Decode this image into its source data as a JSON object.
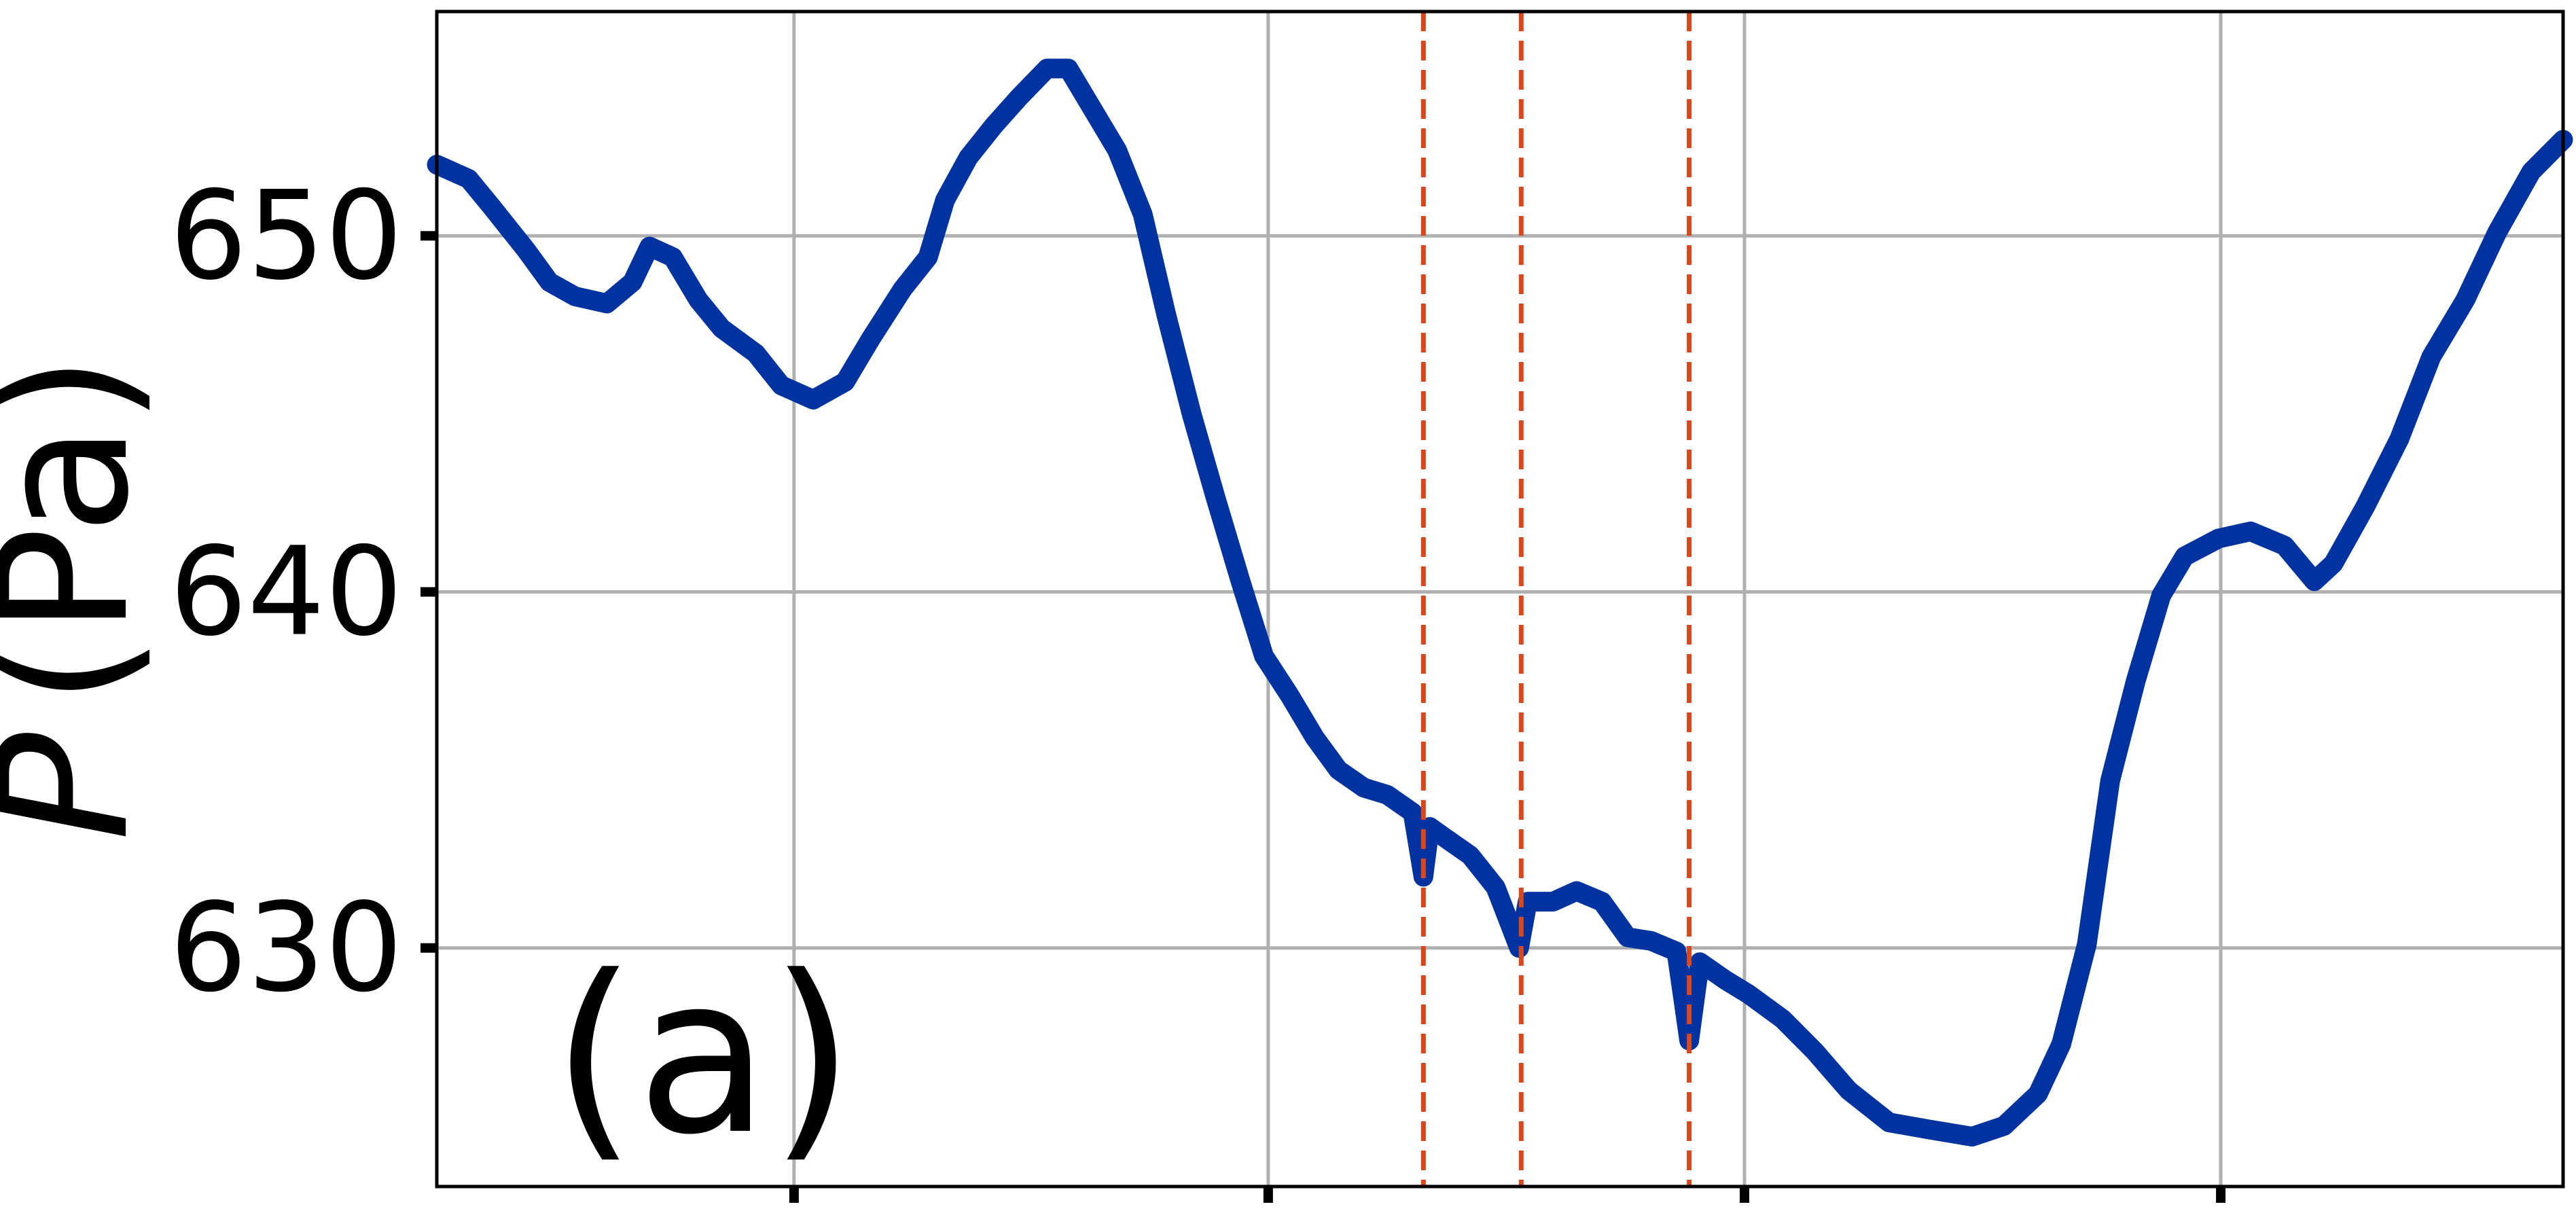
{
  "chart_data": {
    "type": "line",
    "ylabel": {
      "symbol": "P",
      "unit": "(Pa)"
    },
    "annotation": "(a)",
    "x": [
      0,
      1.5,
      2.6,
      4.2,
      5.3,
      6.5,
      8.0,
      9.2,
      10.0,
      11.1,
      12.3,
      13.4,
      15.0,
      16.2,
      17.7,
      19.2,
      20.4,
      21.9,
      23.1,
      23.9,
      25.0,
      26.2,
      27.4,
      28.7,
      29.7,
      30.8,
      32.0,
      33.2,
      34.3,
      35.5,
      36.6,
      37.8,
      38.9,
      40.1,
      41.3,
      42.4,
      43.6,
      44.7,
      45.9,
      46.4,
      46.7,
      47.4,
      48.6,
      49.8,
      50.9,
      51.3,
      52.5,
      53.6,
      54.8,
      56.0,
      57.1,
      58.3,
      58.9,
      59.4,
      60.6,
      61.7,
      63.3,
      64.8,
      66.4,
      68.3,
      70.2,
      72.2,
      73.7,
      75.3,
      76.4,
      77.6,
      78.7,
      79.9,
      81.1,
      82.2,
      83.8,
      85.3,
      86.9,
      88.3,
      89.2,
      90.7,
      92.3,
      93.8,
      95.4,
      96.9,
      98.5,
      100
    ],
    "series": [
      {
        "color": "#0033a0",
        "values": [
          652.0,
          651.6,
          650.8,
          649.6,
          648.7,
          648.3,
          648.1,
          648.7,
          649.7,
          649.4,
          648.2,
          647.4,
          646.7,
          645.8,
          645.4,
          645.9,
          647.1,
          648.5,
          649.4,
          651.0,
          652.2,
          653.1,
          653.9,
          654.7,
          654.7,
          653.6,
          652.4,
          650.6,
          647.8,
          645.0,
          642.7,
          640.3,
          638.2,
          637.1,
          635.9,
          635.0,
          634.5,
          634.3,
          633.8,
          632.0,
          633.4,
          633.1,
          632.6,
          631.7,
          630.0,
          631.3,
          631.3,
          631.6,
          631.3,
          630.3,
          630.2,
          629.9,
          627.4,
          629.6,
          629.1,
          628.7,
          628.0,
          627.1,
          626.0,
          625.1,
          624.9,
          624.7,
          625.0,
          625.9,
          627.3,
          630.1,
          634.7,
          637.5,
          639.9,
          641.0,
          641.5,
          641.7,
          641.3,
          640.3,
          640.8,
          642.4,
          644.3,
          646.6,
          648.2,
          650.1,
          651.8,
          652.7
        ]
      }
    ],
    "vlines": [
      46.4,
      51.0,
      58.9
    ],
    "vline_color": "#d9481c",
    "xlim": [
      0,
      100
    ],
    "xticks": [
      16.8,
      39.1,
      61.5,
      83.9
    ],
    "ylim": [
      623.3,
      656.3
    ],
    "yticks": [
      630,
      640,
      650
    ],
    "grid": true
  }
}
